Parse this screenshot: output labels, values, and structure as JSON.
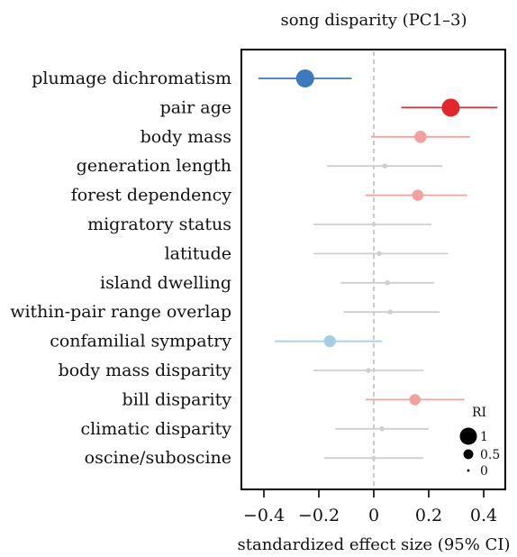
{
  "chart_data": {
    "type": "forest",
    "title": "song disparity (PC1–3)",
    "xlabel": "standardized effect size (95% CI)",
    "xlim": [
      -0.5,
      0.5
    ],
    "xticks": [
      -0.4,
      -0.2,
      0,
      0.2,
      0.4
    ],
    "xtick_labels": [
      "−0.4",
      "−0.2",
      "0",
      "0.2",
      "0.4"
    ],
    "reference_line": 0,
    "points": [
      {
        "label": "plumage dichromatism",
        "estimate": -0.25,
        "lower": -0.42,
        "upper": -0.08,
        "ri": 1.0,
        "color": "#3a7bbf"
      },
      {
        "label": "pair age",
        "estimate": 0.28,
        "lower": 0.1,
        "upper": 0.45,
        "ri": 1.0,
        "color": "#e3262b"
      },
      {
        "label": "body mass",
        "estimate": 0.17,
        "lower": -0.01,
        "upper": 0.35,
        "ri": 0.62,
        "color": "#f4a09c"
      },
      {
        "label": "generation length",
        "estimate": 0.04,
        "lower": -0.17,
        "upper": 0.25,
        "ri": 0.15,
        "color": "#cfcfcf"
      },
      {
        "label": "forest dependency",
        "estimate": 0.16,
        "lower": -0.03,
        "upper": 0.34,
        "ri": 0.55,
        "color": "#f4a09c"
      },
      {
        "label": "migratory status",
        "estimate": 0.0,
        "lower": -0.22,
        "upper": 0.21,
        "ri": 0.1,
        "color": "#cfcfcf"
      },
      {
        "label": "latitude",
        "estimate": 0.02,
        "lower": -0.22,
        "upper": 0.27,
        "ri": 0.15,
        "color": "#cfcfcf"
      },
      {
        "label": "island dwelling",
        "estimate": 0.05,
        "lower": -0.12,
        "upper": 0.22,
        "ri": 0.15,
        "color": "#cfcfcf"
      },
      {
        "label": "within-pair range overlap",
        "estimate": 0.06,
        "lower": -0.11,
        "upper": 0.24,
        "ri": 0.15,
        "color": "#cfcfcf"
      },
      {
        "label": "confamilial sympatry",
        "estimate": -0.16,
        "lower": -0.36,
        "upper": 0.03,
        "ri": 0.6,
        "color": "#a7cde2"
      },
      {
        "label": "body mass disparity",
        "estimate": -0.02,
        "lower": -0.22,
        "upper": 0.18,
        "ri": 0.15,
        "color": "#cfcfcf"
      },
      {
        "label": "bill disparity",
        "estimate": 0.15,
        "lower": -0.03,
        "upper": 0.33,
        "ri": 0.55,
        "color": "#f4a09c"
      },
      {
        "label": "climatic disparity",
        "estimate": 0.03,
        "lower": -0.14,
        "upper": 0.2,
        "ri": 0.15,
        "color": "#cfcfcf"
      },
      {
        "label": "oscine/suboscine",
        "estimate": 0.0,
        "lower": -0.18,
        "upper": 0.18,
        "ri": 0.1,
        "color": "#cfcfcf"
      }
    ],
    "legend": {
      "title": "RI",
      "placement": "bottom-right",
      "entries": [
        {
          "label": "1",
          "ri": 1.0
        },
        {
          "label": "0.5",
          "ri": 0.5
        },
        {
          "label": "0",
          "ri": 0.0
        }
      ]
    },
    "colors": {
      "strong_negative": "#3a7bbf",
      "weak_negative": "#a7cde2",
      "strong_positive": "#e3262b",
      "weak_positive": "#f4a09c",
      "neutral": "#cfcfcf",
      "reference_line": "#bdbdbd"
    }
  }
}
